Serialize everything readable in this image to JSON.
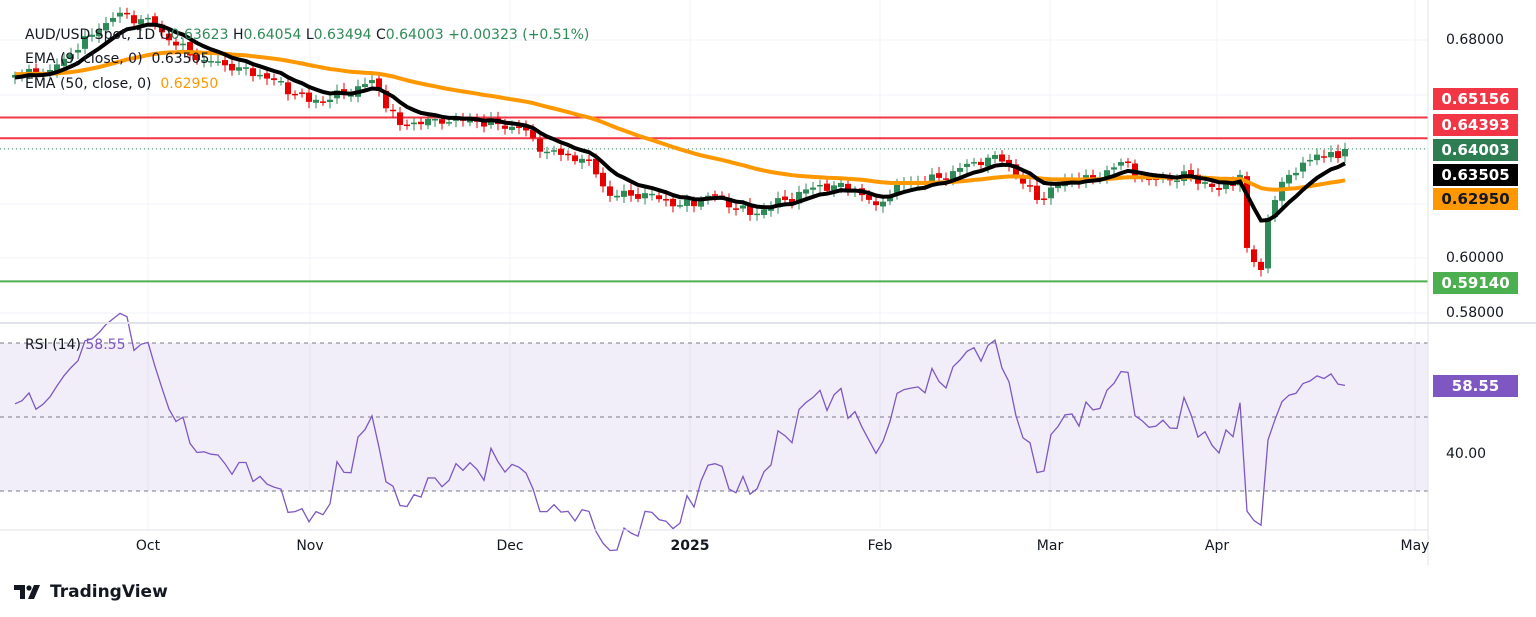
{
  "header": {
    "symbol": "AUD/USD Spot, 1D",
    "open_label": "O",
    "open": "0.63623",
    "high_label": "H",
    "high": "0.64054",
    "low_label": "L",
    "low": "0.63494",
    "close_label": "C",
    "close": "0.64003",
    "change": "+0.00323 (+0.51%)"
  },
  "indicators": {
    "ema9_label": "EMA (9, close, 0)",
    "ema9_value": "0.63505",
    "ema50_label": "EMA (50, close, 0)",
    "ema50_value": "0.62950",
    "rsi_label": "RSI (14)",
    "rsi_value": "58.55"
  },
  "price_axis": [
    "0.68000",
    "0.60000",
    "0.58000"
  ],
  "price_badges": [
    {
      "value": "0.65156",
      "color": "#f23645"
    },
    {
      "value": "0.64393",
      "color": "#f23645"
    },
    {
      "value": "0.64003",
      "color": "#2e7d52"
    },
    {
      "value": "0.63505",
      "color": "#000000"
    },
    {
      "value": "0.62950",
      "color": "#ff9800"
    },
    {
      "value": "0.59140",
      "color": "#4caf50"
    }
  ],
  "rsi_axis": {
    "tick": "40.00",
    "badge": "58.55"
  },
  "time_axis": [
    "Oct",
    "Nov",
    "Dec",
    "2025",
    "Feb",
    "Mar",
    "Apr",
    "May"
  ],
  "logo": "TradingView",
  "chart_data": {
    "type": "candlestick",
    "title": "AUD/USD Spot, 1D",
    "ylim": [
      0.575,
      0.692
    ],
    "horizontal_levels": {
      "resistance": [
        0.65156,
        0.64393
      ],
      "support": [
        0.5914
      ],
      "last": 0.64003
    },
    "close_keyframes": [
      [
        0,
        0.6672
      ],
      [
        5,
        0.669
      ],
      [
        12,
        0.6837
      ],
      [
        15,
        0.69
      ],
      [
        20,
        0.6855
      ],
      [
        23,
        0.678
      ],
      [
        27,
        0.6727
      ],
      [
        32,
        0.67
      ],
      [
        37,
        0.6653
      ],
      [
        42,
        0.6573
      ],
      [
        47,
        0.6598
      ],
      [
        51,
        0.6653
      ],
      [
        55,
        0.6488
      ],
      [
        60,
        0.651
      ],
      [
        66,
        0.65
      ],
      [
        72,
        0.6477
      ],
      [
        76,
        0.639
      ],
      [
        82,
        0.636
      ],
      [
        85,
        0.6228
      ],
      [
        90,
        0.6238
      ],
      [
        95,
        0.6194
      ],
      [
        100,
        0.623
      ],
      [
        105,
        0.6158
      ],
      [
        110,
        0.6213
      ],
      [
        115,
        0.6268
      ],
      [
        120,
        0.625
      ],
      [
        123,
        0.6194
      ],
      [
        126,
        0.6268
      ],
      [
        132,
        0.6294
      ],
      [
        137,
        0.6352
      ],
      [
        140,
        0.6378
      ],
      [
        142,
        0.6341
      ],
      [
        146,
        0.6213
      ],
      [
        150,
        0.6286
      ],
      [
        154,
        0.6294
      ],
      [
        158,
        0.6352
      ],
      [
        162,
        0.6286
      ],
      [
        168,
        0.63
      ],
      [
        172,
        0.625
      ],
      [
        175,
        0.6305
      ],
      [
        176,
        0.6037
      ],
      [
        177,
        0.5985
      ],
      [
        178,
        0.5956
      ],
      [
        179,
        0.6147
      ],
      [
        180,
        0.6213
      ],
      [
        182,
        0.6305
      ],
      [
        185,
        0.636
      ],
      [
        188,
        0.6389
      ],
      [
        189,
        0.6367
      ],
      [
        190,
        0.64
      ]
    ],
    "ema_periods": [
      9,
      50
    ],
    "rsi": {
      "period": 14,
      "levels": [
        70,
        50,
        30
      ],
      "last": 58.55
    }
  }
}
